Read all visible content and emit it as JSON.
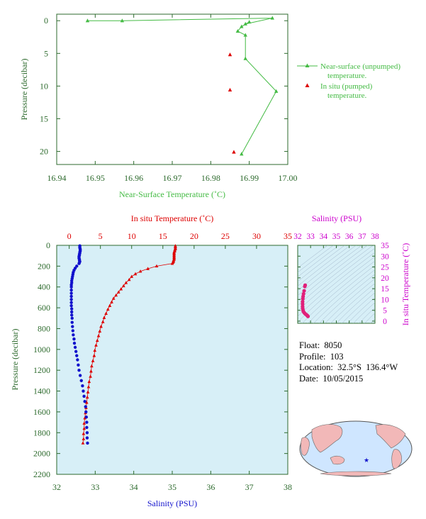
{
  "colors": {
    "green": "#44bb44",
    "red": "#dd0000",
    "blue": "#1111cc",
    "magenta": "#cc00cc",
    "axis_green": "#2d6a2d",
    "panel_bg": "#d7eff7"
  },
  "float_info": {
    "float_line": "Float:  8050",
    "profile_line": "Profile:  103",
    "location_line": "Location:  32.5°S  136.4°W",
    "date_line": "Date:  10/05/2015"
  },
  "chart_data": [
    {
      "type": "line",
      "xlabel": "Near-Surface Temperature (˚C)",
      "ylabel": "Pressure (decibar)",
      "xlim": [
        16.94,
        17.0
      ],
      "ylim": [
        22,
        -1
      ],
      "x_ticks": [
        "16.94",
        "16.95",
        "16.96",
        "16.97",
        "16.98",
        "16.99",
        "17.00"
      ],
      "y_ticks": [
        "0",
        "5",
        "10",
        "15",
        "20"
      ],
      "legend_position": "right",
      "series": [
        {
          "name": "Near-surface (unpumped) temperature.",
          "marker": "triangle-line",
          "points": [
            [
              16.948,
              0.0
            ],
            [
              16.957,
              0.0
            ],
            [
              16.996,
              -0.4
            ],
            [
              16.989,
              0.5
            ],
            [
              16.99,
              0.2
            ],
            [
              16.988,
              0.9
            ],
            [
              16.987,
              1.6
            ],
            [
              16.989,
              2.2
            ],
            [
              16.989,
              5.8
            ],
            [
              16.997,
              10.8
            ],
            [
              16.988,
              20.4
            ]
          ]
        },
        {
          "name": "In situ (pumped) temperature.",
          "marker": "triangle",
          "points": [
            [
              16.985,
              5.2
            ],
            [
              16.985,
              10.6
            ],
            [
              16.986,
              20.1
            ]
          ]
        }
      ]
    },
    {
      "type": "line",
      "xlabel_top": "In situ Temperature (˚C)",
      "xlabel_bottom": "Salinity (PSU)",
      "ylabel": "Pressure (decibar)",
      "temperature_lim": [
        -2,
        35
      ],
      "salinity_lim": [
        32,
        38
      ],
      "ylim": [
        2200,
        0
      ],
      "temperature_ticks": [
        "0",
        "5",
        "10",
        "15",
        "20",
        "25",
        "30",
        "35"
      ],
      "salinity_ticks": [
        "32",
        "33",
        "34",
        "35",
        "36",
        "37",
        "38"
      ],
      "pressure_ticks": [
        "0",
        "200",
        "400",
        "600",
        "800",
        "1000",
        "1200",
        "1400",
        "1600",
        "1800",
        "2000",
        "2200"
      ],
      "series": [
        {
          "name": "temperature",
          "axis": "top",
          "points": [
            [
              17.0,
              5
            ],
            [
              17.0,
              15
            ],
            [
              17.0,
              25
            ],
            [
              17.0,
              35
            ],
            [
              16.9,
              45
            ],
            [
              16.9,
              55
            ],
            [
              16.8,
              65
            ],
            [
              16.8,
              75
            ],
            [
              16.8,
              85
            ],
            [
              16.8,
              95
            ],
            [
              16.8,
              105
            ],
            [
              16.8,
              115
            ],
            [
              16.8,
              125
            ],
            [
              16.8,
              135
            ],
            [
              16.7,
              145
            ],
            [
              16.7,
              155
            ],
            [
              16.6,
              165
            ],
            [
              16.5,
              175
            ],
            [
              14.0,
              200
            ],
            [
              12.6,
              225
            ],
            [
              11.4,
              250
            ],
            [
              10.6,
              275
            ],
            [
              10.0,
              300
            ],
            [
              9.6,
              330
            ],
            [
              9.1,
              360
            ],
            [
              8.7,
              390
            ],
            [
              8.3,
              420
            ],
            [
              7.9,
              450
            ],
            [
              7.5,
              480
            ],
            [
              7.1,
              510
            ],
            [
              6.8,
              545
            ],
            [
              6.5,
              580
            ],
            [
              6.2,
              615
            ],
            [
              5.9,
              655
            ],
            [
              5.6,
              695
            ],
            [
              5.4,
              735
            ],
            [
              5.1,
              780
            ],
            [
              4.9,
              825
            ],
            [
              4.7,
              870
            ],
            [
              4.5,
              915
            ],
            [
              4.3,
              960
            ],
            [
              4.1,
              1010
            ],
            [
              4.0,
              1060
            ],
            [
              3.8,
              1110
            ],
            [
              3.6,
              1160
            ],
            [
              3.5,
              1210
            ],
            [
              3.4,
              1260
            ],
            [
              3.2,
              1310
            ],
            [
              3.1,
              1360
            ],
            [
              3.0,
              1410
            ],
            [
              2.9,
              1460
            ],
            [
              2.8,
              1510
            ],
            [
              2.7,
              1560
            ],
            [
              2.6,
              1610
            ],
            [
              2.5,
              1660
            ],
            [
              2.4,
              1710
            ],
            [
              2.4,
              1760
            ],
            [
              2.3,
              1810
            ],
            [
              2.3,
              1860
            ],
            [
              2.2,
              1900
            ]
          ]
        },
        {
          "name": "salinity",
          "axis": "bottom",
          "points": [
            [
              32.6,
              5
            ],
            [
              32.6,
              15
            ],
            [
              32.6,
              25
            ],
            [
              32.61,
              35
            ],
            [
              32.61,
              45
            ],
            [
              32.61,
              55
            ],
            [
              32.6,
              65
            ],
            [
              32.6,
              75
            ],
            [
              32.59,
              85
            ],
            [
              32.59,
              95
            ],
            [
              32.58,
              105
            ],
            [
              32.58,
              115
            ],
            [
              32.58,
              125
            ],
            [
              32.59,
              135
            ],
            [
              32.59,
              145
            ],
            [
              32.6,
              155
            ],
            [
              32.59,
              165
            ],
            [
              32.58,
              175
            ],
            [
              32.52,
              200
            ],
            [
              32.48,
              220
            ],
            [
              32.45,
              240
            ],
            [
              32.43,
              260
            ],
            [
              32.42,
              280
            ],
            [
              32.41,
              300
            ],
            [
              32.4,
              320
            ],
            [
              32.39,
              340
            ],
            [
              32.39,
              360
            ],
            [
              32.38,
              380
            ],
            [
              32.38,
              400
            ],
            [
              32.38,
              430
            ],
            [
              32.38,
              460
            ],
            [
              32.38,
              490
            ],
            [
              32.38,
              520
            ],
            [
              32.38,
              550
            ],
            [
              32.38,
              580
            ],
            [
              32.39,
              610
            ],
            [
              32.39,
              640
            ],
            [
              32.39,
              670
            ],
            [
              32.4,
              700
            ],
            [
              32.4,
              740
            ],
            [
              32.41,
              780
            ],
            [
              32.42,
              820
            ],
            [
              32.43,
              860
            ],
            [
              32.45,
              900
            ],
            [
              32.46,
              940
            ],
            [
              32.48,
              980
            ],
            [
              32.5,
              1020
            ],
            [
              32.52,
              1060
            ],
            [
              32.54,
              1100
            ],
            [
              32.56,
              1150
            ],
            [
              32.58,
              1200
            ],
            [
              32.61,
              1250
            ],
            [
              32.64,
              1300
            ],
            [
              32.67,
              1350
            ],
            [
              32.69,
              1400
            ],
            [
              32.71,
              1450
            ],
            [
              32.73,
              1500
            ],
            [
              32.75,
              1550
            ],
            [
              32.76,
              1600
            ],
            [
              32.77,
              1650
            ],
            [
              32.78,
              1700
            ],
            [
              32.78,
              1750
            ],
            [
              32.79,
              1800
            ],
            [
              32.79,
              1850
            ],
            [
              32.8,
              1900
            ]
          ]
        }
      ]
    },
    {
      "type": "scatter",
      "xlabel": "Salinity (PSU)",
      "ylabel": "In situ Temperature (˚C)",
      "xlim": [
        32,
        38
      ],
      "ylim": [
        -1,
        35
      ],
      "x_ticks": [
        "32",
        "33",
        "34",
        "35",
        "36",
        "37",
        "38"
      ],
      "y_ticks": [
        "0",
        "5",
        "10",
        "15",
        "20",
        "25",
        "30",
        "35"
      ],
      "points": [
        [
          32.58,
          16.6
        ],
        [
          32.55,
          16.0
        ],
        [
          32.5,
          14.0
        ],
        [
          32.45,
          12.6
        ],
        [
          32.42,
          11.4
        ],
        [
          32.4,
          10.3
        ],
        [
          32.38,
          9.0
        ],
        [
          32.38,
          7.9
        ],
        [
          32.38,
          6.8
        ],
        [
          32.39,
          5.9
        ],
        [
          32.41,
          5.1
        ],
        [
          32.44,
          4.5
        ],
        [
          32.49,
          4.0
        ],
        [
          32.55,
          3.6
        ],
        [
          32.62,
          3.2
        ],
        [
          32.69,
          2.9
        ],
        [
          32.74,
          2.6
        ],
        [
          32.77,
          2.4
        ],
        [
          32.8,
          2.2
        ]
      ]
    }
  ]
}
